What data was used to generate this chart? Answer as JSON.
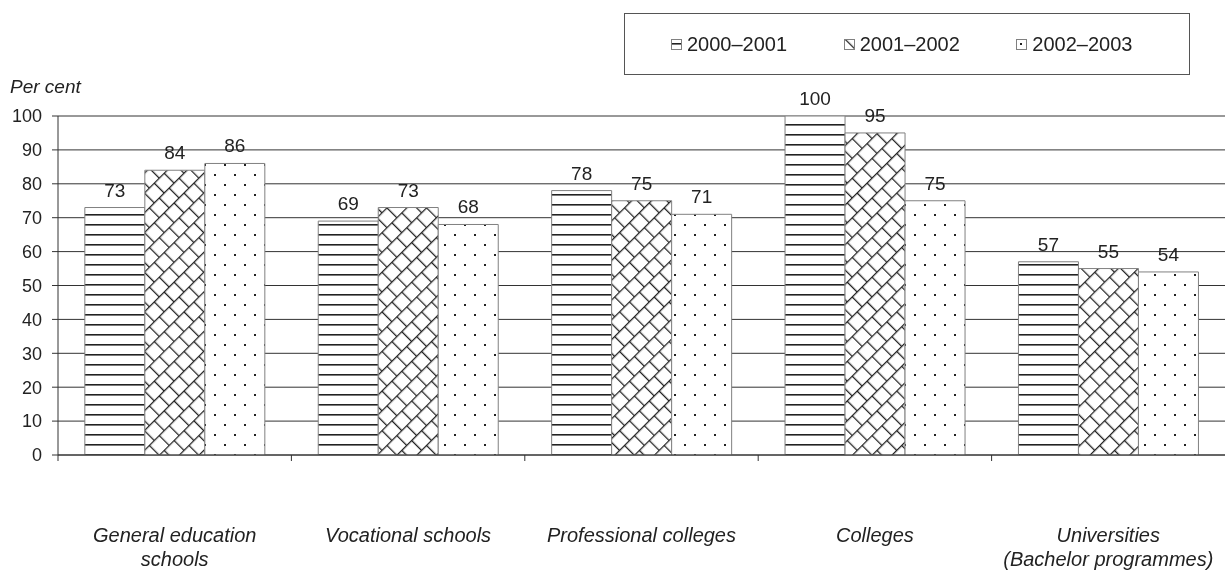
{
  "chart_data": {
    "type": "bar",
    "ylabel": "Per cent",
    "categories": [
      "General education schools",
      "Vocational schools",
      "Professional colleges",
      "Colleges",
      "Universities (Bachelor programmes)"
    ],
    "series": [
      {
        "name": "2000–2001",
        "color": "#808080",
        "values": [
          73,
          69,
          78,
          100,
          57
        ]
      },
      {
        "name": "2001–2002",
        "color": "#808080",
        "values": [
          84,
          73,
          75,
          95,
          55
        ]
      },
      {
        "name": "2002–2003",
        "color": "#808080",
        "values": [
          86,
          68,
          71,
          75,
          54
        ]
      }
    ],
    "ylim": [
      0,
      100
    ],
    "yticks": [
      0,
      10,
      20,
      30,
      40,
      50,
      60,
      70,
      80,
      90,
      100
    ],
    "grid": "y",
    "legend": "top right",
    "data_labels": true
  }
}
